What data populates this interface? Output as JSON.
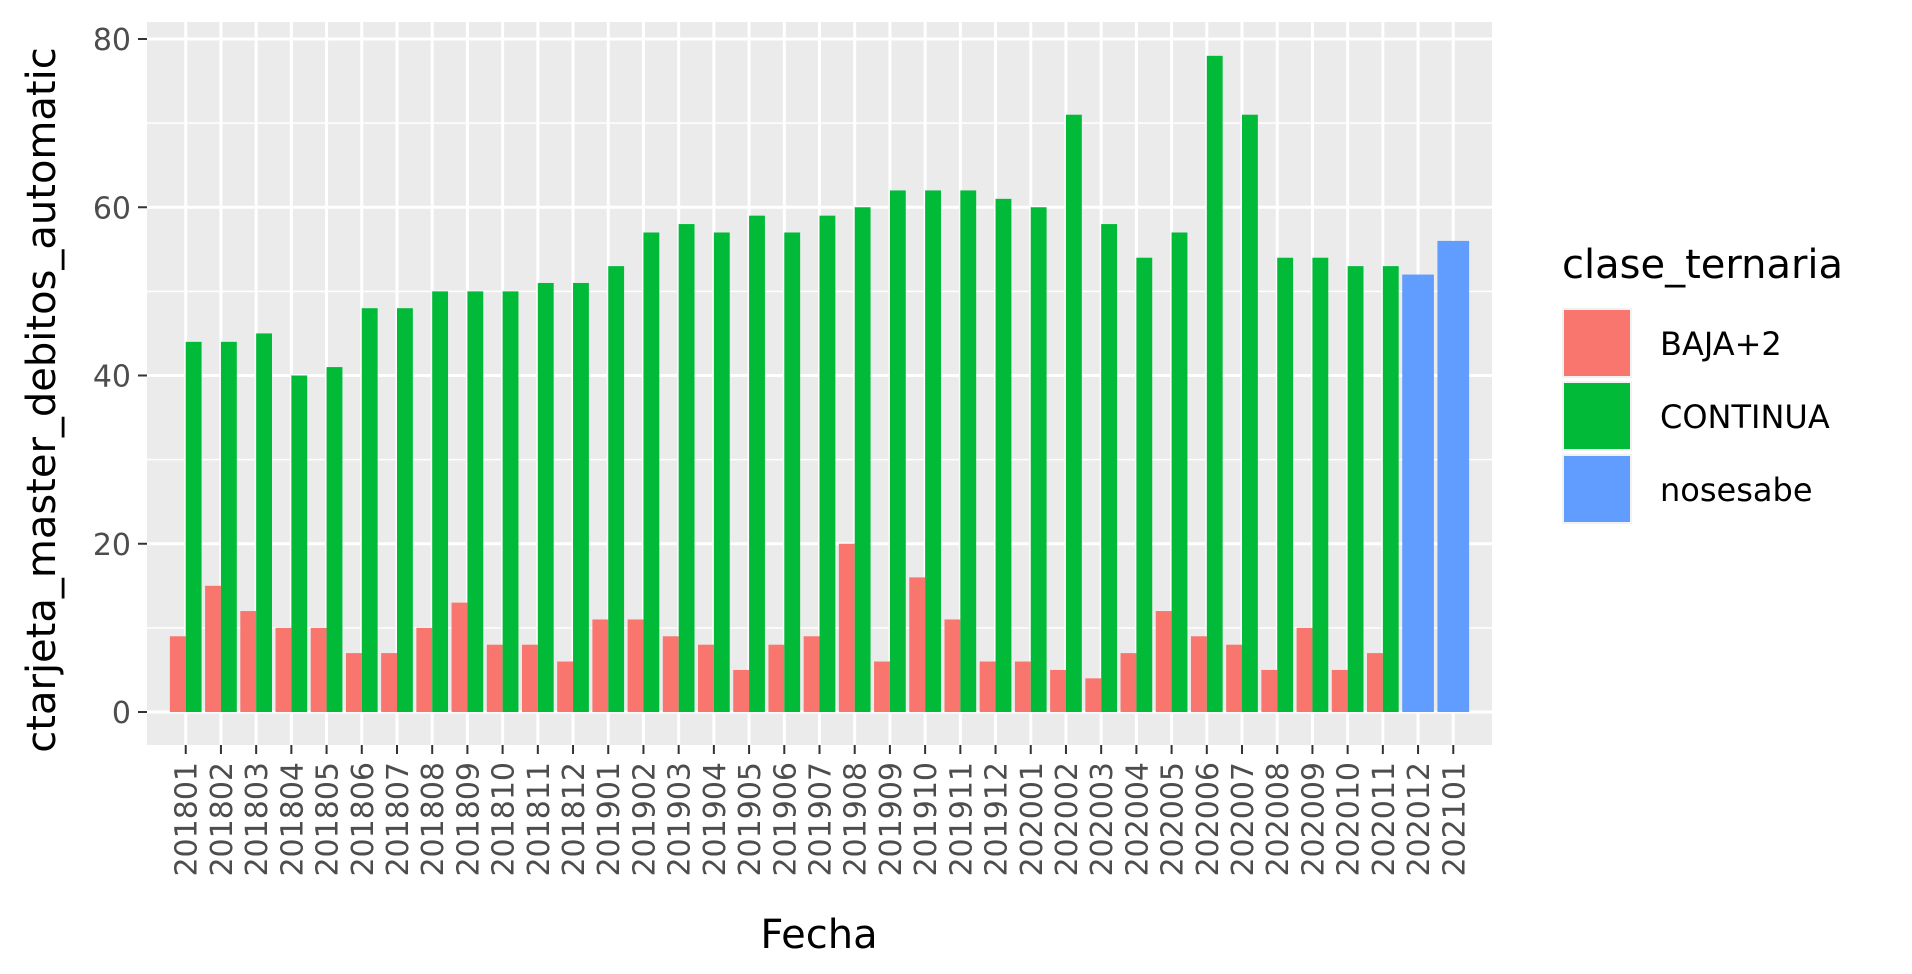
{
  "chart_data": {
    "type": "bar",
    "title": "",
    "xlabel": "Fecha",
    "ylabel": "ctarjeta_master_debitos_automatic",
    "ylim": [
      0,
      80
    ],
    "yticks": [
      0,
      20,
      40,
      60,
      80
    ],
    "grid": true,
    "legend_position": "right",
    "legend_title": "clase_ternaria",
    "categories": [
      "201801",
      "201802",
      "201803",
      "201804",
      "201805",
      "201806",
      "201807",
      "201808",
      "201809",
      "201810",
      "201811",
      "201812",
      "201901",
      "201902",
      "201903",
      "201904",
      "201905",
      "201906",
      "201907",
      "201908",
      "201909",
      "201910",
      "201911",
      "201912",
      "202001",
      "202002",
      "202003",
      "202004",
      "202005",
      "202006",
      "202007",
      "202008",
      "202009",
      "202010",
      "202011",
      "202012",
      "202101"
    ],
    "series": [
      {
        "name": "BAJA+2",
        "color": "#F8766D",
        "values": [
          9,
          15,
          12,
          10,
          10,
          7,
          7,
          10,
          13,
          8,
          8,
          6,
          11,
          11,
          9,
          8,
          5,
          8,
          9,
          20,
          6,
          16,
          11,
          6,
          6,
          5,
          4,
          7,
          12,
          9,
          8,
          5,
          10,
          5,
          7,
          null,
          null
        ]
      },
      {
        "name": "CONTINUA",
        "color": "#00BA38",
        "values": [
          44,
          44,
          45,
          40,
          41,
          48,
          48,
          50,
          50,
          50,
          51,
          51,
          53,
          57,
          58,
          57,
          59,
          57,
          59,
          60,
          62,
          62,
          62,
          61,
          60,
          71,
          58,
          54,
          57,
          78,
          71,
          54,
          54,
          53,
          53,
          null,
          null
        ]
      },
      {
        "name": "nosesabe",
        "color": "#619CFF",
        "values": [
          null,
          null,
          null,
          null,
          null,
          null,
          null,
          null,
          null,
          null,
          null,
          null,
          null,
          null,
          null,
          null,
          null,
          null,
          null,
          null,
          null,
          null,
          null,
          null,
          null,
          null,
          null,
          null,
          null,
          null,
          null,
          null,
          null,
          null,
          null,
          52,
          56
        ]
      }
    ]
  }
}
